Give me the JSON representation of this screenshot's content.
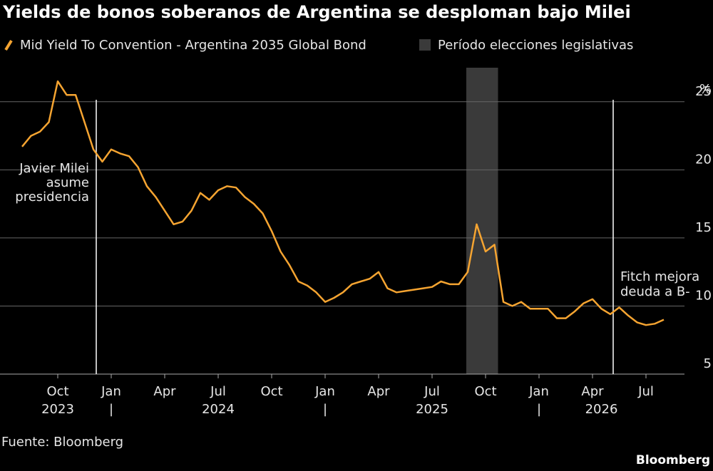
{
  "chart_data": {
    "type": "line",
    "title": "Yields de bonos soberanos de Argentina se desploman bajo Milei",
    "y_unit": "%",
    "source": "Fuente: Bloomberg",
    "brand": "Bloomberg",
    "categories": [
      null,
      null,
      null,
      null,
      "Oct",
      null,
      null,
      null,
      null,
      null,
      "Jan",
      null,
      null,
      null,
      null,
      null,
      "Apr",
      null,
      null,
      null,
      null,
      null,
      "Jul",
      null,
      null,
      null,
      null,
      null,
      "Oct",
      null,
      null,
      null,
      null,
      null,
      "Jan",
      null,
      null,
      null,
      null,
      null,
      "Apr",
      null,
      null,
      null,
      null,
      null,
      "Jul",
      null,
      null,
      null,
      null,
      null,
      "Oct",
      null,
      null,
      null,
      null,
      null,
      "Jan",
      null,
      null,
      null,
      null,
      null,
      "Apr",
      null,
      null,
      null,
      null,
      null,
      "Jul",
      null,
      null
    ],
    "year_labels": [
      null,
      null,
      null,
      null,
      "2023",
      null,
      null,
      null,
      null,
      null,
      "|",
      null,
      null,
      null,
      null,
      null,
      null,
      null,
      null,
      null,
      null,
      null,
      "2024",
      null,
      null,
      null,
      null,
      null,
      null,
      null,
      null,
      null,
      null,
      null,
      "|",
      null,
      null,
      null,
      null,
      null,
      null,
      null,
      null,
      null,
      null,
      null,
      "2025",
      null,
      null,
      null,
      null,
      null,
      null,
      null,
      null,
      null,
      null,
      null,
      "|",
      null,
      null,
      null,
      null,
      null,
      null,
      "2026",
      null,
      null,
      null,
      null,
      null,
      null,
      null
    ],
    "series": [
      {
        "name": "Mid Yield To Convention - Argentina 2035 Global Bond",
        "color": "#f5a431",
        "values": [
          21.7,
          22.5,
          22.8,
          23.5,
          26.5,
          25.5,
          25.5,
          23.5,
          21.5,
          20.6,
          21.5,
          21.2,
          21.0,
          20.2,
          18.8,
          18.0,
          17.0,
          16.0,
          16.2,
          17.0,
          18.3,
          17.8,
          18.5,
          18.8,
          18.7,
          18.0,
          17.5,
          16.8,
          15.5,
          14.0,
          13.0,
          11.8,
          11.5,
          11.0,
          10.3,
          10.6,
          11.0,
          11.6,
          11.8,
          12.0,
          12.5,
          11.3,
          11.0,
          11.1,
          11.2,
          11.3,
          11.4,
          11.8,
          11.6,
          11.6,
          12.5,
          16.0,
          14.0,
          14.5,
          10.3,
          10.0,
          10.3,
          9.8,
          9.8,
          9.8,
          9.1,
          9.1,
          9.6,
          10.2,
          10.5,
          9.8,
          9.4,
          9.9,
          9.3,
          8.8,
          8.6,
          8.7,
          9.0
        ]
      }
    ],
    "shade": {
      "name": "Período elecciones legislativas",
      "color": "#3a3a3a",
      "span": [
        50,
        53
      ]
    },
    "annotations": [
      {
        "index": 8,
        "lines": [
          "Javier Milei",
          "asume",
          "presidencia"
        ],
        "side": "left"
      },
      {
        "index": 66,
        "lines": [
          "Fitch mejora",
          "deuda a B-"
        ],
        "side": "right"
      }
    ],
    "ylim": [
      5,
      27.5
    ],
    "yticks": [
      5,
      10,
      15,
      20,
      25
    ],
    "grid": true
  }
}
